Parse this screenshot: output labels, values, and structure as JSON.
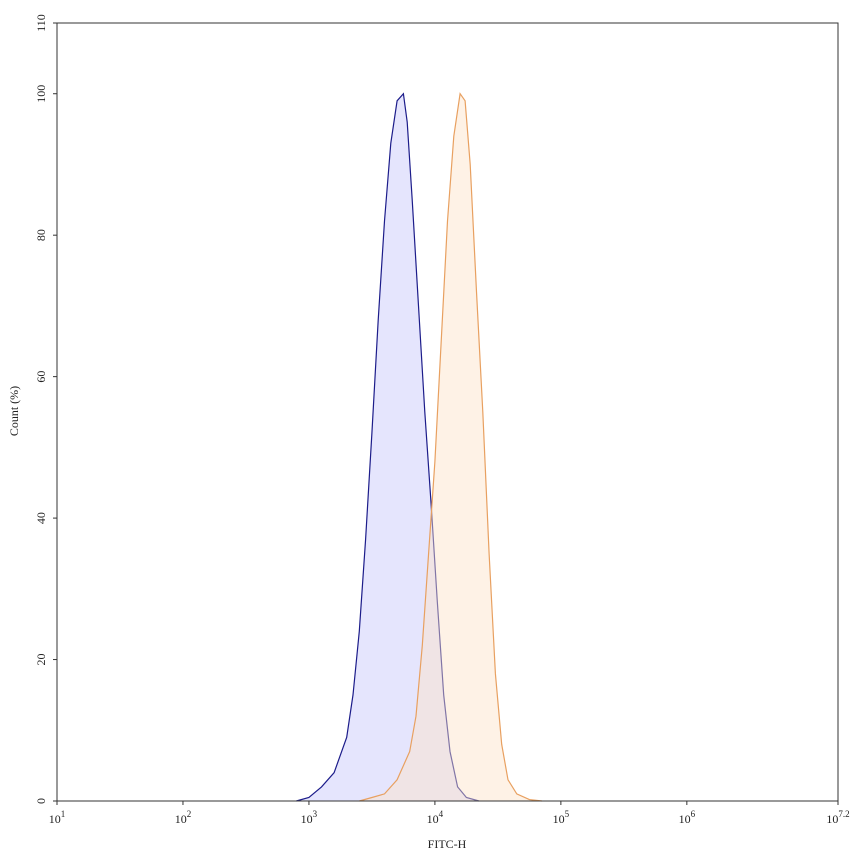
{
  "chart_data": {
    "type": "area",
    "xlabel": "FITC-H",
    "ylabel": "Count  (%)",
    "xscale": "log",
    "xlim": [
      10,
      15848931.92
    ],
    "ylim": [
      0,
      110
    ],
    "xticks": [
      {
        "value": 10,
        "label": "10",
        "exponent": "1"
      },
      {
        "value": 100,
        "label": "10",
        "exponent": "2"
      },
      {
        "value": 1000,
        "label": "10",
        "exponent": "3"
      },
      {
        "value": 10000,
        "label": "10",
        "exponent": "4"
      },
      {
        "value": 100000,
        "label": "10",
        "exponent": "5"
      },
      {
        "value": 1000000,
        "label": "10",
        "exponent": "6"
      },
      {
        "value": 15848931.92,
        "label": "10",
        "exponent": "7.2"
      }
    ],
    "yticks": [
      0,
      20,
      40,
      60,
      80,
      100,
      110
    ],
    "series": [
      {
        "color": "#1c1c8a",
        "fill": "rgba(190,190,250,0.4)",
        "x": [
          794,
          1000,
          1259,
          1585,
          1995,
          2239,
          2512,
          2818,
          3162,
          3548,
          3981,
          4467,
          5012,
          5623,
          6026,
          6607,
          7413,
          8318,
          9333,
          10471,
          11749,
          13183,
          15136,
          17783,
          22387
        ],
        "values": [
          0,
          0.5,
          2,
          4,
          9,
          15,
          24,
          37,
          52,
          68,
          82,
          93,
          99,
          100,
          96,
          85,
          70,
          55,
          42,
          28,
          15,
          7,
          2,
          0.5,
          0
        ]
      },
      {
        "color": "#e8a060",
        "fill": "rgba(252,226,200,0.45)",
        "x": [
          2512,
          3162,
          3981,
          5012,
          6310,
          7079,
          7943,
          8913,
          10000,
          11220,
          12589,
          14125,
          15849,
          17378,
          19055,
          21380,
          23988,
          26915,
          30200,
          33884,
          38019,
          44668,
          56234,
          70795
        ],
        "values": [
          0,
          0.5,
          1,
          3,
          7,
          12,
          22,
          35,
          48,
          65,
          82,
          94,
          100,
          99,
          90,
          72,
          55,
          35,
          18,
          8,
          3,
          1,
          0.2,
          0
        ]
      }
    ]
  }
}
